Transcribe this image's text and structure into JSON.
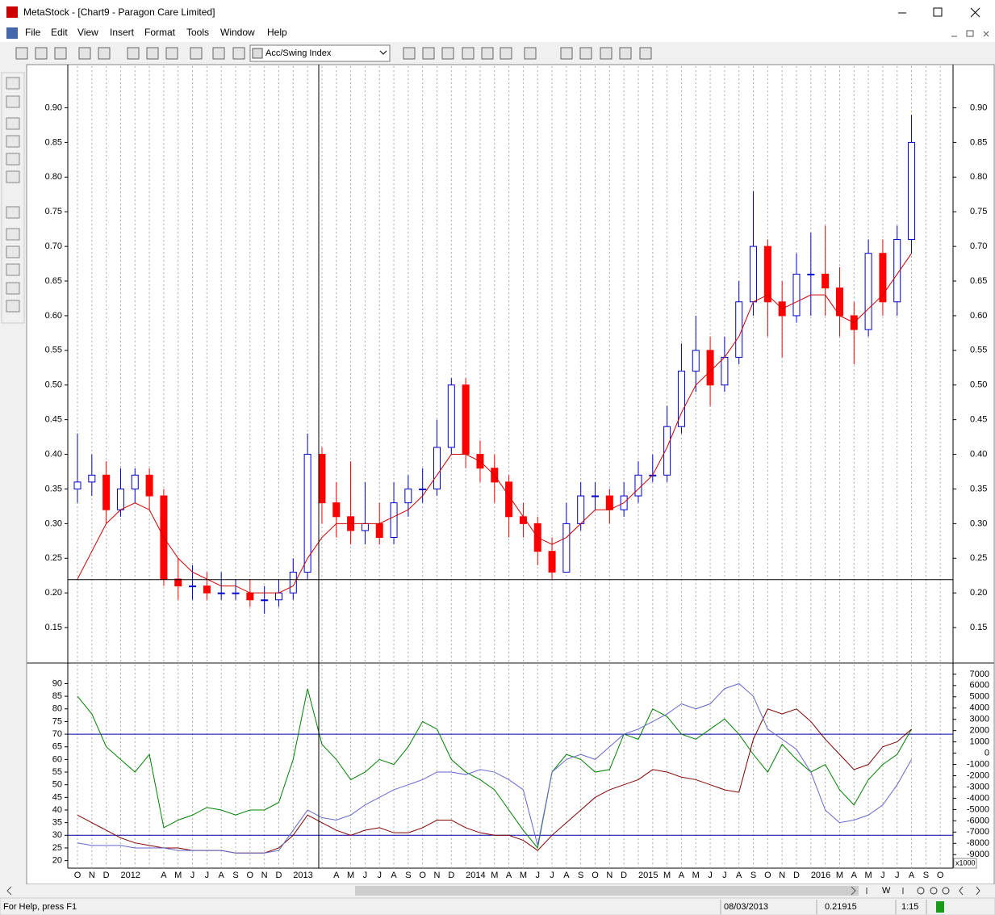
{
  "window": {
    "title": "MetaStock - [Chart9 - Paragon Care Limited]"
  },
  "menu": [
    "File",
    "Edit",
    "View",
    "Insert",
    "Format",
    "Tools",
    "Window",
    "Help"
  ],
  "toolbar": {
    "indicator": "Acc/Swing Index"
  },
  "chart_data": [
    {
      "type": "candlestick",
      "open": [
        0.35,
        0.36,
        0.37,
        0.32,
        0.35,
        0.37,
        0.34,
        0.22,
        0.21,
        0.21,
        0.2,
        0.2,
        0.2,
        0.19,
        0.19,
        0.2,
        0.23,
        0.4,
        0.33,
        0.31,
        0.29,
        0.3,
        0.28,
        0.33,
        0.35,
        0.35,
        0.41,
        0.5,
        0.4,
        0.38,
        0.36,
        0.31,
        0.3,
        0.26,
        0.23,
        0.3,
        0.34,
        0.34,
        0.32,
        0.34,
        0.37,
        0.37,
        0.44,
        0.52,
        0.55,
        0.5,
        0.54,
        0.62,
        0.7,
        0.62,
        0.6,
        0.66,
        0.66,
        0.64,
        0.6,
        0.58,
        0.69,
        0.62,
        0.71,
        null,
        null
      ],
      "high": [
        0.43,
        0.4,
        0.39,
        0.38,
        0.38,
        0.38,
        0.35,
        0.25,
        0.24,
        0.23,
        0.23,
        0.22,
        0.22,
        0.21,
        0.22,
        0.25,
        0.43,
        0.41,
        0.36,
        0.39,
        0.36,
        0.33,
        0.36,
        0.37,
        0.38,
        0.45,
        0.51,
        0.51,
        0.42,
        0.4,
        0.37,
        0.33,
        0.31,
        0.28,
        0.33,
        0.36,
        0.36,
        0.35,
        0.36,
        0.39,
        0.4,
        0.47,
        0.56,
        0.6,
        0.57,
        0.57,
        0.65,
        0.78,
        0.71,
        0.65,
        0.69,
        0.72,
        0.73,
        0.67,
        0.62,
        0.71,
        0.71,
        0.73,
        0.89,
        null,
        null
      ],
      "low": [
        0.33,
        0.34,
        0.3,
        0.31,
        0.33,
        0.32,
        0.21,
        0.19,
        0.19,
        0.19,
        0.19,
        0.19,
        0.18,
        0.17,
        0.18,
        0.19,
        0.22,
        0.3,
        0.28,
        0.27,
        0.27,
        0.27,
        0.27,
        0.31,
        0.33,
        0.34,
        0.4,
        0.38,
        0.36,
        0.33,
        0.28,
        0.28,
        0.24,
        0.22,
        0.23,
        0.29,
        0.32,
        0.3,
        0.31,
        0.33,
        0.36,
        0.36,
        0.43,
        0.49,
        0.47,
        0.49,
        0.53,
        0.6,
        0.57,
        0.54,
        0.59,
        0.6,
        0.6,
        0.57,
        0.53,
        0.57,
        0.6,
        0.6,
        0.69,
        null,
        null
      ],
      "close": [
        0.36,
        0.37,
        0.32,
        0.35,
        0.37,
        0.34,
        0.22,
        0.21,
        0.21,
        0.2,
        0.2,
        0.2,
        0.19,
        0.19,
        0.2,
        0.23,
        0.4,
        0.33,
        0.31,
        0.29,
        0.3,
        0.28,
        0.33,
        0.35,
        0.35,
        0.41,
        0.5,
        0.4,
        0.38,
        0.36,
        0.31,
        0.3,
        0.26,
        0.23,
        0.3,
        0.34,
        0.34,
        0.32,
        0.34,
        0.37,
        0.37,
        0.44,
        0.52,
        0.55,
        0.5,
        0.54,
        0.62,
        0.7,
        0.62,
        0.6,
        0.66,
        0.66,
        0.64,
        0.6,
        0.58,
        0.69,
        0.62,
        0.71,
        0.85,
        null,
        null
      ],
      "up_color": "#0000cc",
      "down_color": "#ff0000",
      "moving_average": {
        "color": "#cc0000",
        "values": [
          0.22,
          0.26,
          0.3,
          0.32,
          0.33,
          0.32,
          0.28,
          0.25,
          0.23,
          0.22,
          0.21,
          0.21,
          0.2,
          0.2,
          0.2,
          0.21,
          0.25,
          0.28,
          0.3,
          0.3,
          0.3,
          0.3,
          0.31,
          0.32,
          0.34,
          0.37,
          0.4,
          0.4,
          0.39,
          0.37,
          0.34,
          0.31,
          0.28,
          0.27,
          0.28,
          0.3,
          0.32,
          0.32,
          0.33,
          0.35,
          0.37,
          0.41,
          0.46,
          0.5,
          0.52,
          0.54,
          0.57,
          0.62,
          0.63,
          0.61,
          0.62,
          0.63,
          0.63,
          0.6,
          0.59,
          0.61,
          0.63,
          0.66,
          0.69,
          null,
          null
        ]
      },
      "ylim": [
        0.1,
        0.96
      ],
      "yticks": [
        0.15,
        {
          "value": 0.2,
          "label": "0.20"
        },
        0.25,
        {
          "value": 0.3,
          "label": "0.30"
        },
        0.35,
        {
          "value": 0.4,
          "label": "0.40"
        },
        0.45,
        {
          "value": 0.5,
          "label": "0.50"
        },
        0.55,
        {
          "value": 0.6,
          "label": "0.60"
        },
        0.65,
        {
          "value": 0.7,
          "label": "0.70"
        },
        0.75,
        {
          "value": 0.8,
          "label": "0.80"
        },
        0.85,
        {
          "value": 0.9,
          "label": "0.90"
        }
      ],
      "grid": true
    },
    {
      "type": "line",
      "categories": [
        "O",
        "N",
        "D",
        "2012",
        null,
        null,
        "A",
        "M",
        "J",
        "J",
        "A",
        "S",
        "O",
        "N",
        "D",
        "2013",
        null,
        null,
        "A",
        "M",
        "J",
        "J",
        "A",
        "S",
        "O",
        "N",
        "D",
        "2014",
        null,
        "M",
        "A",
        "M",
        "J",
        "J",
        "A",
        "S",
        "O",
        "N",
        "D",
        "2015",
        null,
        "M",
        "A",
        "M",
        "J",
        "J",
        "A",
        "S",
        "O",
        "N",
        "D",
        "2016",
        null,
        "M",
        "A",
        "M",
        "J",
        "J",
        "A",
        "S",
        "O"
      ],
      "series": [
        {
          "color": "#008000",
          "values": [
            85,
            78,
            65,
            60,
            55,
            62,
            33,
            36,
            38,
            41,
            40,
            38,
            40,
            40,
            43,
            60,
            88,
            66,
            60,
            52,
            55,
            60,
            58,
            65,
            75,
            72,
            60,
            55,
            52,
            48,
            40,
            32,
            25,
            55,
            62,
            60,
            55,
            56,
            70,
            68,
            80,
            77,
            70,
            68,
            72,
            76,
            70,
            62,
            55,
            66,
            60,
            55,
            58,
            48,
            42,
            52,
            58,
            62,
            72,
            null,
            null
          ]
        },
        {
          "color": "#800000",
          "values": [
            38,
            35,
            32,
            29,
            27,
            26,
            25,
            25,
            24,
            24,
            24,
            23,
            23,
            23,
            25,
            30,
            38,
            35,
            32,
            30,
            32,
            33,
            31,
            31,
            33,
            36,
            36,
            33,
            31,
            30,
            30,
            28,
            24,
            30,
            35,
            40,
            45,
            48,
            50,
            52,
            56,
            55,
            53,
            52,
            50,
            48,
            47,
            68,
            80,
            78,
            80,
            75,
            68,
            62,
            56,
            58,
            65,
            67,
            72,
            null,
            null
          ]
        },
        {
          "color": "#6666cc",
          "values": [
            27,
            26,
            26,
            26,
            25,
            25,
            25,
            24,
            24,
            24,
            24,
            23,
            23,
            23,
            24,
            32,
            40,
            37,
            36,
            38,
            42,
            45,
            48,
            50,
            52,
            55,
            55,
            54,
            56,
            55,
            52,
            48,
            26,
            55,
            60,
            62,
            60,
            65,
            70,
            72,
            75,
            78,
            82,
            80,
            82,
            88,
            90,
            85,
            72,
            68,
            64,
            55,
            40,
            35,
            36,
            38,
            42,
            50,
            60,
            null,
            null
          ]
        }
      ],
      "ylim": [
        17,
        97.5
      ],
      "yticks": [
        20,
        25,
        30,
        35,
        40,
        45,
        50,
        55,
        60,
        65,
        70,
        75,
        80,
        85,
        90
      ],
      "y2lim": [
        -10200,
        7850
      ],
      "y2ticks": [
        7000,
        6000,
        5000,
        4000,
        3000,
        2000,
        1000,
        0,
        -1000,
        -2000,
        -3000,
        -4000,
        -5000,
        -6000,
        -7000,
        -8000,
        -9000
      ],
      "y2label": "x1000",
      "reference_lines": [
        70,
        30
      ],
      "reference_color": "#0000aa"
    }
  ],
  "scroll": {
    "zoom": "W"
  },
  "status": {
    "help": "For Help, press F1",
    "date": "08/03/2013",
    "price": 0.21915,
    "time": "1:15"
  }
}
